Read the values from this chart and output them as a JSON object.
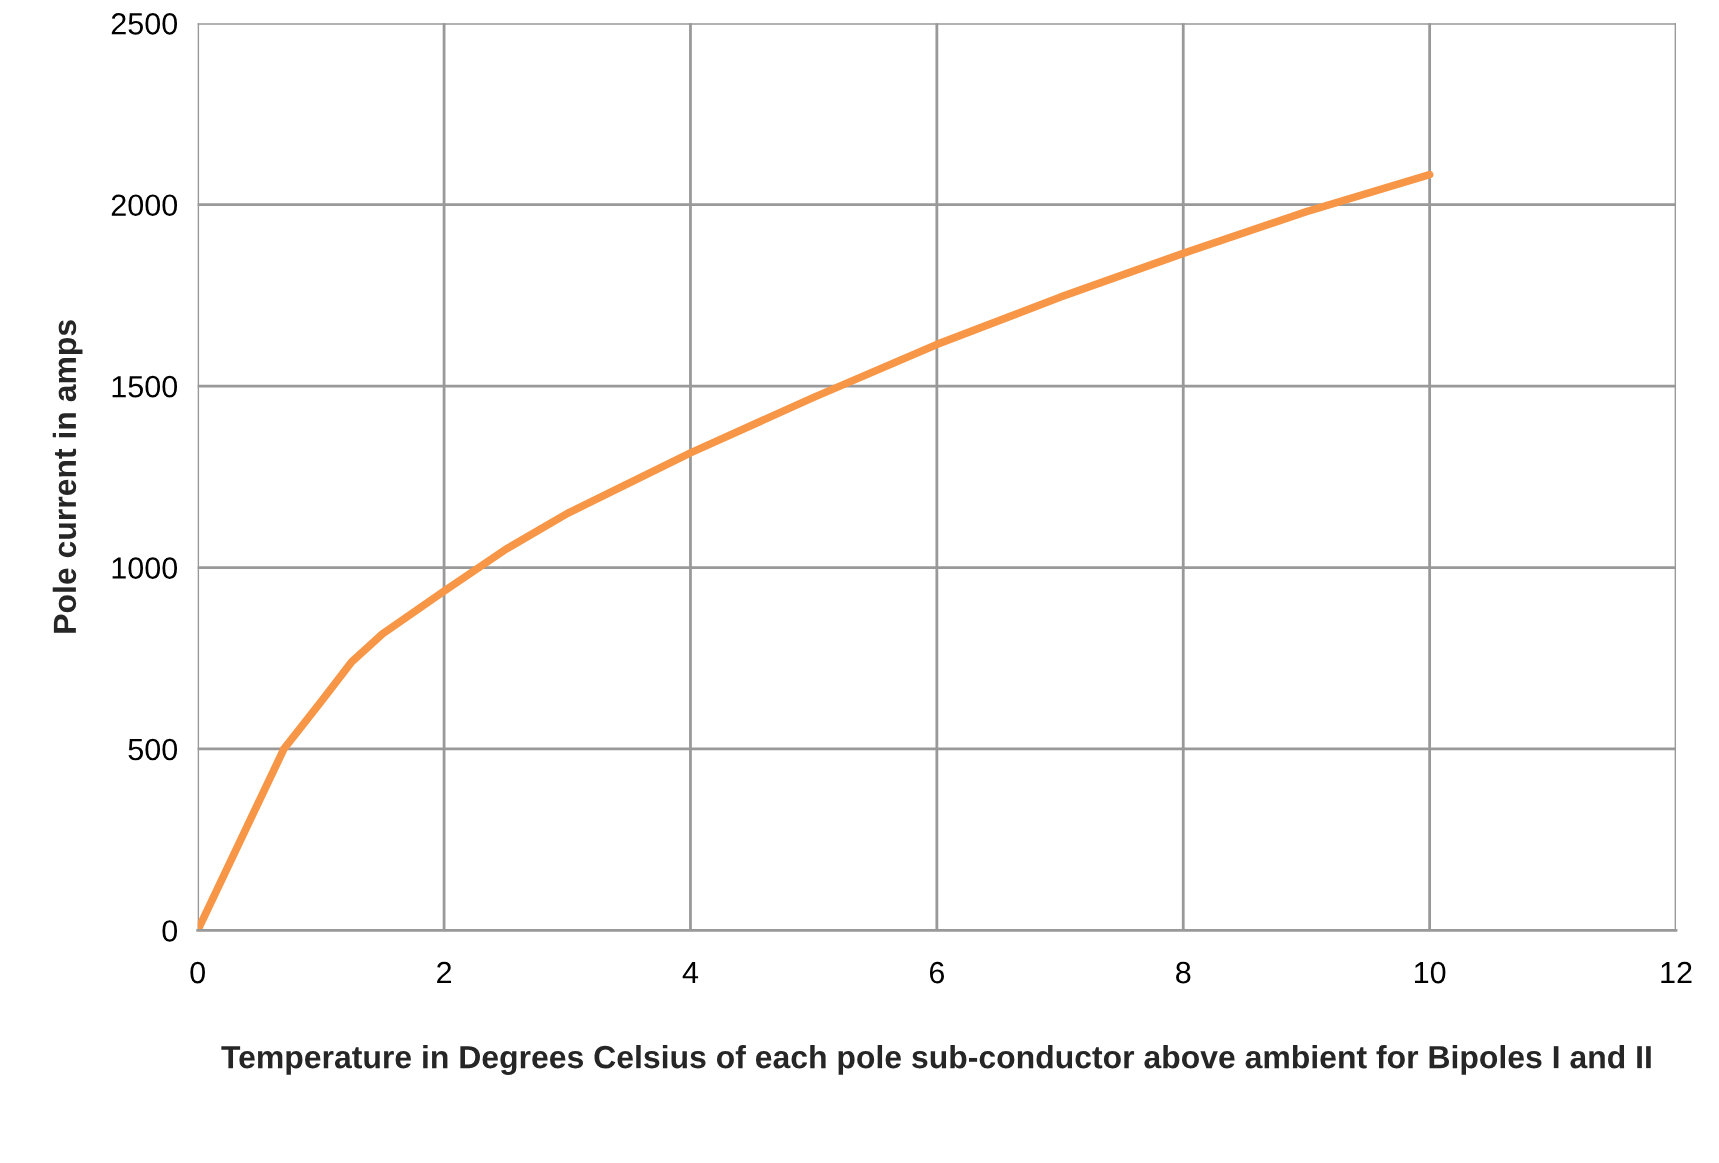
{
  "chart_data": {
    "type": "line",
    "xlabel": "Temperature in Degrees Celsius of each pole sub-conductor above ambient for Bipoles I and II",
    "ylabel": "Pole current in amps",
    "series": [
      {
        "color": "#f79646",
        "x": [
          0,
          0.35,
          0.7,
          1,
          1.25,
          1.5,
          2,
          2.5,
          3,
          4,
          5,
          6,
          7,
          8,
          9,
          10
        ],
        "values": [
          0,
          250,
          500,
          630,
          740,
          817,
          935,
          1050,
          1149,
          1316,
          1469,
          1615,
          1745,
          1866,
          1981,
          2083
        ]
      }
    ],
    "xlim": [
      0,
      12
    ],
    "ylim": [
      0,
      2500
    ],
    "xticks": [
      0,
      2,
      4,
      6,
      8,
      10,
      12
    ],
    "yticks": [
      0,
      500,
      1000,
      1500,
      2000,
      2500
    ],
    "grid": true,
    "marker": "none",
    "line_style": "solid"
  }
}
